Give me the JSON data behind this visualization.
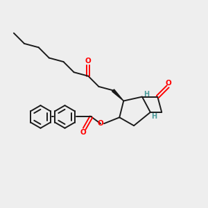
{
  "background_color": "#eeeeee",
  "bond_color": "#1a1a1a",
  "oxygen_color": "#ff0000",
  "hydrogen_color": "#4a9a9a",
  "figsize": [
    3.0,
    3.0
  ],
  "dpi": 100,
  "xlim": [
    0,
    10
  ],
  "ylim": [
    0,
    10
  ]
}
